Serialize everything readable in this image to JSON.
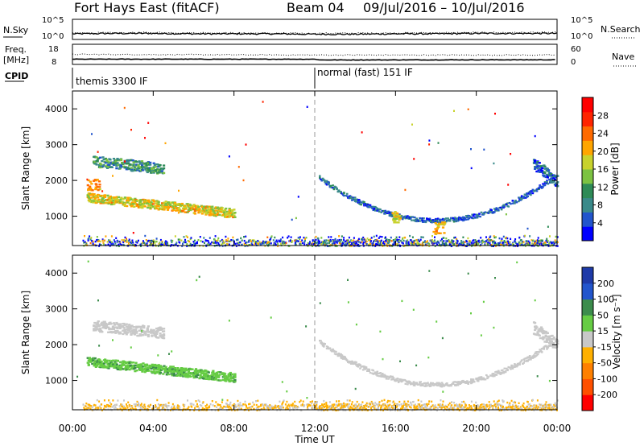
{
  "header": {
    "title": "Fort Hays East (fitACF)",
    "beam": "Beam 04",
    "dates": "09/Jul/2016 – 10/Jul/2016"
  },
  "chart_data": [
    {
      "type": "line",
      "panel": "noise",
      "left_label": "N.Sky",
      "right_label": "N.Search",
      "left_ticks": [
        "10^5",
        "10^0"
      ],
      "right_ticks": [
        "10^5",
        "10^0"
      ],
      "series": [
        {
          "name": "N.Sky",
          "style": "solid",
          "x_hours": [
            0,
            2,
            4,
            6,
            8,
            10,
            12,
            14,
            16,
            18,
            20,
            22,
            24
          ],
          "values_log10": [
            1.4,
            1.5,
            1.5,
            1.4,
            1.4,
            1.4,
            1.3,
            1.3,
            1.4,
            1.4,
            1.5,
            1.5,
            1.5
          ]
        },
        {
          "name": "N.Search",
          "style": "dotted",
          "x_hours": [
            0,
            4,
            8,
            12,
            16,
            20,
            24
          ],
          "values_log10": [
            1.6,
            1.7,
            1.6,
            1.5,
            1.6,
            1.7,
            1.7
          ]
        }
      ]
    },
    {
      "type": "line",
      "panel": "frequency",
      "left_label": "Freq.",
      "left_unit": "[MHz]",
      "right_label": "Nave",
      "left_ticks": [
        "18",
        "8"
      ],
      "right_ticks": [
        "60",
        "0"
      ],
      "series": [
        {
          "name": "Freq.",
          "style": "solid",
          "x_hours": [
            0,
            12,
            12.3,
            24
          ],
          "values": [
            10.6,
            10.6,
            10.2,
            10.3
          ]
        },
        {
          "name": "Nave",
          "style": "dotted",
          "x_hours": [
            0,
            12,
            24
          ],
          "values": [
            30,
            28,
            28
          ]
        }
      ]
    },
    {
      "type": "table",
      "panel": "cpid",
      "label": "CPID",
      "segments": [
        {
          "name": "themis 3300 IF",
          "start_hour": 0
        },
        {
          "name": "normal (fast) 151 IF",
          "start_hour": 12
        }
      ]
    },
    {
      "type": "heatmap",
      "panel": "power",
      "ylabel": "Slant Range [km]",
      "xlim": [
        0,
        24
      ],
      "ylim": [
        180,
        4500
      ],
      "yticks": [
        1000,
        2000,
        3000,
        4000
      ],
      "colorbar_label": "Power [dB]",
      "colorbar_ticks": [
        4,
        8,
        12,
        16,
        20,
        24,
        28
      ],
      "colorbar_range": [
        0,
        32
      ],
      "colorbar_colors": [
        "#0000ff",
        "#2255cc",
        "#3a8a8a",
        "#2e8b57",
        "#7cc242",
        "#c8d22d",
        "#ffa500",
        "#ff6a00",
        "#ff2400",
        "#ff0000"
      ],
      "features": [
        {
          "kind": "band",
          "x_start": 0.7,
          "x_end": 8.0,
          "r_start": 1550,
          "r_end": 1100,
          "thickness": 250,
          "value": 18
        },
        {
          "kind": "band",
          "x_start": 1.0,
          "x_end": 4.5,
          "r_start": 2550,
          "r_end": 2350,
          "thickness": 300,
          "value": 10
        },
        {
          "kind": "blob",
          "x": 1.0,
          "r": 1900,
          "dx": 0.3,
          "dr": 150,
          "value": 22
        },
        {
          "kind": "arc",
          "x_start": 12.2,
          "x_end": 23.8,
          "r_edge": 2100,
          "r_min": 900,
          "x_min": 18.0,
          "thickness": 120,
          "value": 6
        },
        {
          "kind": "blob",
          "x": 16.0,
          "r": 1000,
          "dx": 0.2,
          "dr": 150,
          "value": 18
        },
        {
          "kind": "blob",
          "x": 18.1,
          "r": 680,
          "dx": 0.3,
          "dr": 180,
          "value": 20
        },
        {
          "kind": "ground",
          "x_start": 0.5,
          "x_end": 24,
          "r_min": 190,
          "r_max": 480,
          "value": 8
        },
        {
          "kind": "band",
          "x_start": 22.8,
          "x_end": 24,
          "r_start": 2500,
          "r_end": 2000,
          "thickness": 350,
          "value": 6
        }
      ]
    },
    {
      "type": "heatmap",
      "panel": "velocity",
      "xlabel": "Time UT",
      "ylabel": "Slant Range [km]",
      "xlim": [
        0,
        24
      ],
      "ylim": [
        180,
        4500
      ],
      "xtick_labels": [
        "00:00",
        "04:00",
        "08:00",
        "12:00",
        "16:00",
        "20:00",
        "00:00"
      ],
      "yticks": [
        1000,
        2000,
        3000,
        4000
      ],
      "colorbar_label": "Velocity [m s⁻¹]",
      "colorbar_ticks": [
        200,
        100,
        50,
        15,
        -15,
        -50,
        -100,
        -200
      ],
      "colorbar_colors": [
        "#1e3aa8",
        "#2255cc",
        "#3c8c4c",
        "#66cc44",
        "#c8c8c8",
        "#ffb000",
        "#ff8000",
        "#ff5000",
        "#ff0000"
      ],
      "features": [
        {
          "kind": "band",
          "x_start": 0.7,
          "x_end": 8.0,
          "r_start": 1550,
          "r_end": 1100,
          "thickness": 250,
          "value": 80
        },
        {
          "kind": "band",
          "x_start": 1.0,
          "x_end": 4.5,
          "r_start": 2550,
          "r_end": 2350,
          "thickness": 300,
          "value": 0
        },
        {
          "kind": "arc",
          "x_start": 12.2,
          "x_end": 23.8,
          "r_edge": 2100,
          "r_min": 900,
          "x_min": 18.0,
          "thickness": 120,
          "value": 0
        },
        {
          "kind": "ground",
          "x_start": 0.5,
          "x_end": 24,
          "r_min": 190,
          "r_max": 480,
          "value": -30
        },
        {
          "kind": "band",
          "x_start": 22.8,
          "x_end": 24,
          "r_start": 2500,
          "r_end": 2000,
          "thickness": 350,
          "value": 0
        }
      ]
    }
  ]
}
